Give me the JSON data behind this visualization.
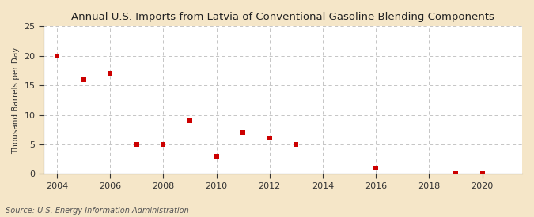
{
  "title": "Annual U.S. Imports from Latvia of Conventional Gasoline Blending Components",
  "ylabel": "Thousand Barrels per Day",
  "source": "Source: U.S. Energy Information Administration",
  "figure_bg": "#f5e6c8",
  "plot_bg": "#ffffff",
  "marker_color": "#cc0000",
  "grid_color": "#bbbbbb",
  "spine_color": "#555555",
  "tick_color": "#333333",
  "xlim": [
    2003.5,
    2021.5
  ],
  "ylim": [
    0,
    25
  ],
  "xticks": [
    2004,
    2006,
    2008,
    2010,
    2012,
    2014,
    2016,
    2018,
    2020
  ],
  "yticks": [
    0,
    5,
    10,
    15,
    20,
    25
  ],
  "data_x": [
    2004,
    2005,
    2006,
    2007,
    2008,
    2009,
    2010,
    2011,
    2012,
    2013,
    2016,
    2019,
    2020
  ],
  "data_y": [
    20,
    16,
    17,
    5,
    5,
    9,
    3,
    7,
    6,
    5,
    1,
    0.1,
    0.1
  ]
}
